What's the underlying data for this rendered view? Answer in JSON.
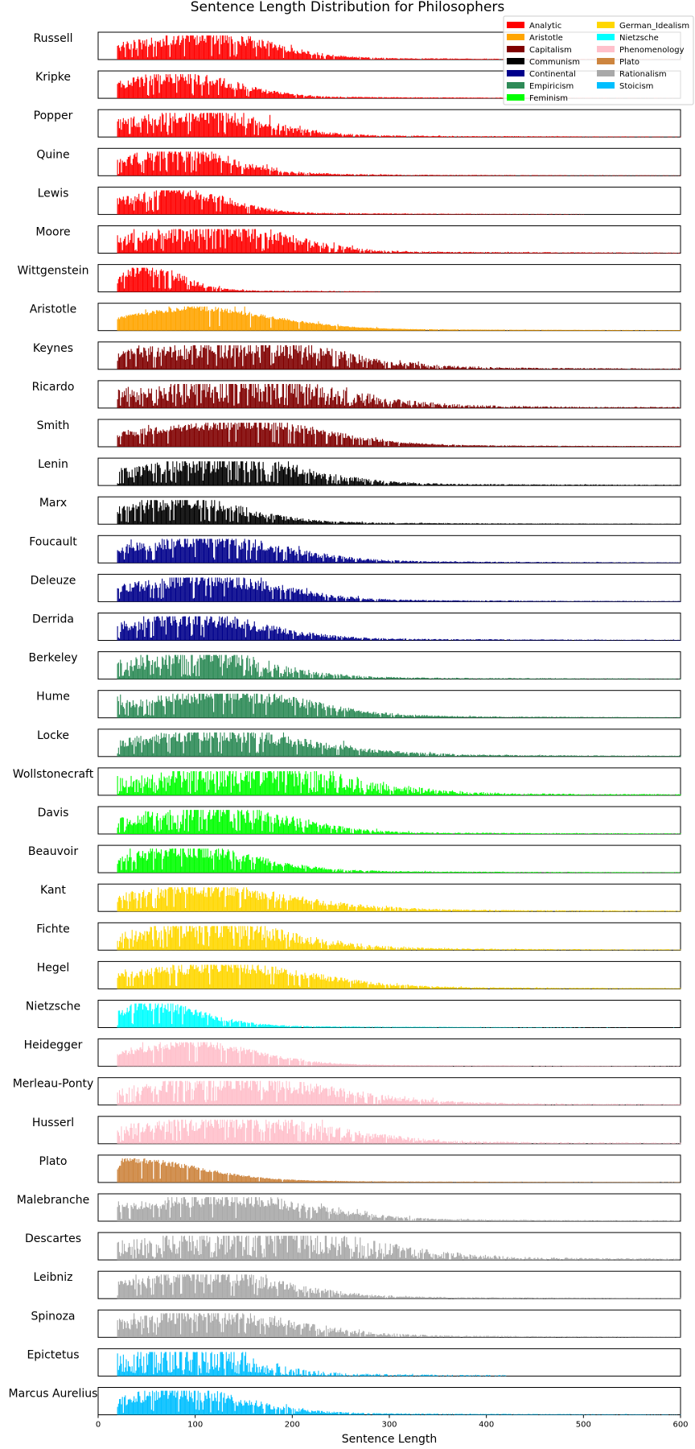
{
  "chart_data": {
    "type": "bar",
    "title": "Sentence Length Distribution for Philosophers",
    "xlabel": "Sentence Length",
    "ylabel": "",
    "xlim": [
      0,
      600
    ],
    "x_ticks": [
      0,
      100,
      200,
      300,
      400,
      500,
      600
    ],
    "grid": false,
    "legend_position": "top-right",
    "legend": [
      {
        "name": "Analytic",
        "color": "#ff0000"
      },
      {
        "name": "Aristotle",
        "color": "#ffa500"
      },
      {
        "name": "Capitalism",
        "color": "#800000"
      },
      {
        "name": "Communism",
        "color": "#000000"
      },
      {
        "name": "Continental",
        "color": "#00008b"
      },
      {
        "name": "Empiricism",
        "color": "#2e8b57"
      },
      {
        "name": "Feminism",
        "color": "#00ff00"
      },
      {
        "name": "German_Idealism",
        "color": "#ffd700"
      },
      {
        "name": "Nietzsche",
        "color": "#00ffff"
      },
      {
        "name": "Phenomenology",
        "color": "#ffc0cb"
      },
      {
        "name": "Plato",
        "color": "#cd853f"
      },
      {
        "name": "Rationalism",
        "color": "#a9a9a9"
      },
      {
        "name": "Stoicism",
        "color": "#00bfff"
      }
    ],
    "series": [
      {
        "name": "Russell",
        "school": "Analytic",
        "x_range": [
          20,
          600
        ],
        "peak": 110,
        "max_len": 600,
        "spread": 85,
        "noise": 0.35
      },
      {
        "name": "Kripke",
        "school": "Analytic",
        "x_range": [
          20,
          600
        ],
        "peak": 75,
        "max_len": 600,
        "spread": 80,
        "noise": 0.35
      },
      {
        "name": "Popper",
        "school": "Analytic",
        "x_range": [
          20,
          600
        ],
        "peak": 95,
        "max_len": 600,
        "spread": 90,
        "noise": 0.45
      },
      {
        "name": "Quine",
        "school": "Analytic",
        "x_range": [
          20,
          600
        ],
        "peak": 70,
        "max_len": 600,
        "spread": 85,
        "noise": 0.4
      },
      {
        "name": "Lewis",
        "school": "Analytic",
        "x_range": [
          20,
          560
        ],
        "peak": 75,
        "max_len": 500,
        "spread": 70,
        "noise": 0.35
      },
      {
        "name": "Moore",
        "school": "Analytic",
        "x_range": [
          20,
          600
        ],
        "peak": 120,
        "max_len": 600,
        "spread": 95,
        "noise": 0.45
      },
      {
        "name": "Wittgenstein",
        "school": "Analytic",
        "x_range": [
          20,
          300
        ],
        "peak": 45,
        "max_len": 290,
        "spread": 50,
        "noise": 0.35
      },
      {
        "name": "Aristotle",
        "school": "Aristotle",
        "x_range": [
          20,
          600
        ],
        "peak": 90,
        "max_len": 600,
        "spread": 110,
        "noise": 0.12
      },
      {
        "name": "Keynes",
        "school": "Capitalism",
        "x_range": [
          20,
          600
        ],
        "peak": 150,
        "max_len": 600,
        "spread": 120,
        "noise": 0.5
      },
      {
        "name": "Ricardo",
        "school": "Capitalism",
        "x_range": [
          20,
          600
        ],
        "peak": 140,
        "max_len": 600,
        "spread": 130,
        "noise": 0.6
      },
      {
        "name": "Smith",
        "school": "Capitalism",
        "x_range": [
          20,
          600
        ],
        "peak": 150,
        "max_len": 600,
        "spread": 110,
        "noise": 0.25
      },
      {
        "name": "Lenin",
        "school": "Communism",
        "x_range": [
          20,
          600
        ],
        "peak": 120,
        "max_len": 600,
        "spread": 110,
        "noise": 0.45
      },
      {
        "name": "Marx",
        "school": "Communism",
        "x_range": [
          20,
          600
        ],
        "peak": 70,
        "max_len": 600,
        "spread": 95,
        "noise": 0.4
      },
      {
        "name": "Foucault",
        "school": "Continental",
        "x_range": [
          20,
          600
        ],
        "peak": 100,
        "max_len": 600,
        "spread": 110,
        "noise": 0.35
      },
      {
        "name": "Deleuze",
        "school": "Continental",
        "x_range": [
          20,
          600
        ],
        "peak": 100,
        "max_len": 600,
        "spread": 105,
        "noise": 0.35
      },
      {
        "name": "Derrida",
        "school": "Continental",
        "x_range": [
          20,
          600
        ],
        "peak": 80,
        "max_len": 600,
        "spread": 105,
        "noise": 0.4
      },
      {
        "name": "Berkeley",
        "school": "Empiricism",
        "x_range": [
          20,
          600
        ],
        "peak": 90,
        "max_len": 600,
        "spread": 100,
        "noise": 0.5
      },
      {
        "name": "Hume",
        "school": "Empiricism",
        "x_range": [
          20,
          600
        ],
        "peak": 130,
        "max_len": 600,
        "spread": 110,
        "noise": 0.35
      },
      {
        "name": "Locke",
        "school": "Empiricism",
        "x_range": [
          20,
          600
        ],
        "peak": 100,
        "max_len": 600,
        "spread": 140,
        "noise": 0.35
      },
      {
        "name": "Wollstonecraft",
        "school": "Feminism",
        "x_range": [
          20,
          600
        ],
        "peak": 150,
        "max_len": 600,
        "spread": 130,
        "noise": 0.6
      },
      {
        "name": "Davis",
        "school": "Feminism",
        "x_range": [
          20,
          600
        ],
        "peak": 120,
        "max_len": 600,
        "spread": 95,
        "noise": 0.5
      },
      {
        "name": "Beauvoir",
        "school": "Feminism",
        "x_range": [
          20,
          600
        ],
        "peak": 80,
        "max_len": 600,
        "spread": 100,
        "noise": 0.35
      },
      {
        "name": "Kant",
        "school": "German_Idealism",
        "x_range": [
          20,
          600
        ],
        "peak": 80,
        "max_len": 600,
        "spread": 140,
        "noise": 0.35
      },
      {
        "name": "Fichte",
        "school": "German_Idealism",
        "x_range": [
          20,
          600
        ],
        "peak": 100,
        "max_len": 600,
        "spread": 120,
        "noise": 0.45
      },
      {
        "name": "Hegel",
        "school": "German_Idealism",
        "x_range": [
          20,
          600
        ],
        "peak": 120,
        "max_len": 600,
        "spread": 120,
        "noise": 0.3
      },
      {
        "name": "Nietzsche",
        "school": "Nietzsche",
        "x_range": [
          20,
          600
        ],
        "peak": 45,
        "max_len": 600,
        "spread": 75,
        "noise": 0.3
      },
      {
        "name": "Heidegger",
        "school": "Phenomenology",
        "x_range": [
          20,
          600
        ],
        "peak": 90,
        "max_len": 600,
        "spread": 90,
        "noise": 0.2
      },
      {
        "name": "Merleau-Ponty",
        "school": "Phenomenology",
        "x_range": [
          20,
          600
        ],
        "peak": 130,
        "max_len": 600,
        "spread": 140,
        "noise": 0.4
      },
      {
        "name": "Husserl",
        "school": "Phenomenology",
        "x_range": [
          20,
          600
        ],
        "peak": 120,
        "max_len": 600,
        "spread": 140,
        "noise": 0.45
      },
      {
        "name": "Plato",
        "school": "Plato",
        "x_range": [
          20,
          600
        ],
        "peak": 25,
        "max_len": 600,
        "spread": 100,
        "noise": 0.15
      },
      {
        "name": "Malebranche",
        "school": "Rationalism",
        "x_range": [
          20,
          600
        ],
        "peak": 120,
        "max_len": 600,
        "spread": 120,
        "noise": 0.35
      },
      {
        "name": "Descartes",
        "school": "Rationalism",
        "x_range": [
          20,
          600
        ],
        "peak": 150,
        "max_len": 600,
        "spread": 150,
        "noise": 0.7
      },
      {
        "name": "Leibniz",
        "school": "Rationalism",
        "x_range": [
          20,
          600
        ],
        "peak": 100,
        "max_len": 600,
        "spread": 110,
        "noise": 0.4
      },
      {
        "name": "Spinoza",
        "school": "Rationalism",
        "x_range": [
          20,
          600
        ],
        "peak": 100,
        "max_len": 600,
        "spread": 120,
        "noise": 0.45
      },
      {
        "name": "Epictetus",
        "school": "Stoicism",
        "x_range": [
          20,
          420
        ],
        "peak": 80,
        "max_len": 420,
        "spread": 90,
        "noise": 0.85
      },
      {
        "name": "Marcus Aurelius",
        "school": "Stoicism",
        "x_range": [
          20,
          600
        ],
        "peak": 70,
        "max_len": 600,
        "spread": 95,
        "noise": 0.4
      }
    ]
  }
}
